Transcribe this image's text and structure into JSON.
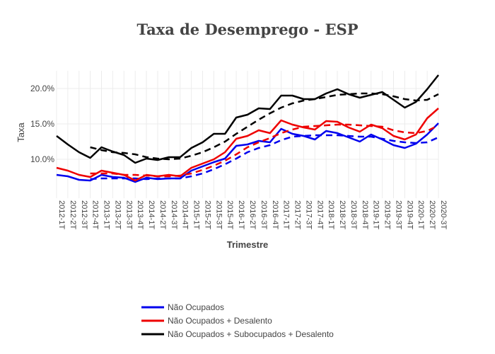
{
  "chart_data": {
    "type": "line",
    "title": "Taxa de Desemprego - ESP",
    "xlabel": "Trimestre",
    "ylabel": "Taxa",
    "ylim": [
      0.045,
      0.225
    ],
    "yticks": [
      0.1,
      0.15,
      0.2
    ],
    "ytick_labels": [
      "10.0%",
      "15.0%",
      "20.0%"
    ],
    "grid": true,
    "legend_position": "bottom-left",
    "x": [
      "2012-1T",
      "2012-2T",
      "2012-3T",
      "2012-4T",
      "2013-1T",
      "2013-2T",
      "2013-3T",
      "2013-4T",
      "2014-1T",
      "2014-2T",
      "2014-3T",
      "2014-4T",
      "2015-1T",
      "2015-2T",
      "2015-3T",
      "2015-4T",
      "2016-1T",
      "2016-2T",
      "2016-3T",
      "2016-4T",
      "2017-1T",
      "2017-2T",
      "2017-3T",
      "2017-4T",
      "2018-1T",
      "2018-2T",
      "2018-3T",
      "2018-4T",
      "2019-1T",
      "2019-2T",
      "2019-3T",
      "2019-4T",
      "2020-1T",
      "2020-2T",
      "2020-3T"
    ],
    "series": [
      {
        "name": "Não Ocupados",
        "color": "#0000ee",
        "values": [
          0.078,
          0.076,
          0.071,
          0.07,
          0.078,
          0.075,
          0.074,
          0.068,
          0.074,
          0.072,
          0.073,
          0.073,
          0.084,
          0.09,
          0.096,
          0.101,
          0.119,
          0.121,
          0.126,
          0.124,
          0.143,
          0.136,
          0.133,
          0.128,
          0.14,
          0.137,
          0.131,
          0.125,
          0.135,
          0.128,
          0.12,
          0.116,
          0.122,
          0.135,
          0.151
        ],
        "trend": [
          null,
          null,
          null,
          0.072,
          0.073,
          0.073,
          0.073,
          0.073,
          0.072,
          0.073,
          0.073,
          0.073,
          0.076,
          0.08,
          0.086,
          0.093,
          0.101,
          0.11,
          0.116,
          0.12,
          0.127,
          0.132,
          0.133,
          0.134,
          0.134,
          0.134,
          0.133,
          0.132,
          0.132,
          0.129,
          0.126,
          0.124,
          0.123,
          0.124,
          0.131
        ]
      },
      {
        "name": "Não Ocupados + Desalento",
        "color": "#ee0000",
        "values": [
          0.088,
          0.084,
          0.078,
          0.075,
          0.084,
          0.081,
          0.078,
          0.07,
          0.078,
          0.076,
          0.078,
          0.076,
          0.088,
          0.094,
          0.1,
          0.11,
          0.129,
          0.133,
          0.141,
          0.137,
          0.155,
          0.149,
          0.145,
          0.142,
          0.154,
          0.153,
          0.145,
          0.139,
          0.149,
          0.144,
          0.133,
          0.128,
          0.135,
          0.158,
          0.172
        ],
        "trend": [
          null,
          null,
          null,
          0.08,
          0.08,
          0.08,
          0.078,
          0.078,
          0.077,
          0.076,
          0.076,
          0.077,
          0.08,
          0.085,
          0.091,
          0.098,
          0.107,
          0.117,
          0.124,
          0.13,
          0.137,
          0.142,
          0.146,
          0.147,
          0.148,
          0.149,
          0.149,
          0.148,
          0.147,
          0.146,
          0.141,
          0.138,
          0.137,
          0.14,
          0.148
        ]
      },
      {
        "name": "Não Ocupados + Subocupados + Desalento",
        "color": "#000000",
        "values": [
          0.133,
          0.121,
          0.11,
          0.102,
          0.117,
          0.111,
          0.106,
          0.095,
          0.101,
          0.099,
          0.103,
          0.103,
          0.116,
          0.124,
          0.136,
          0.136,
          0.159,
          0.163,
          0.172,
          0.171,
          0.19,
          0.19,
          0.185,
          0.185,
          0.193,
          0.199,
          0.192,
          0.187,
          0.191,
          0.195,
          0.184,
          0.173,
          0.181,
          0.199,
          0.219
        ],
        "trend": [
          null,
          null,
          null,
          0.117,
          0.113,
          0.11,
          0.109,
          0.107,
          0.103,
          0.101,
          0.1,
          0.101,
          0.105,
          0.11,
          0.117,
          0.125,
          0.136,
          0.146,
          0.156,
          0.165,
          0.173,
          0.179,
          0.183,
          0.185,
          0.188,
          0.191,
          0.192,
          0.193,
          0.193,
          0.192,
          0.189,
          0.185,
          0.183,
          0.184,
          0.192
        ]
      }
    ]
  }
}
